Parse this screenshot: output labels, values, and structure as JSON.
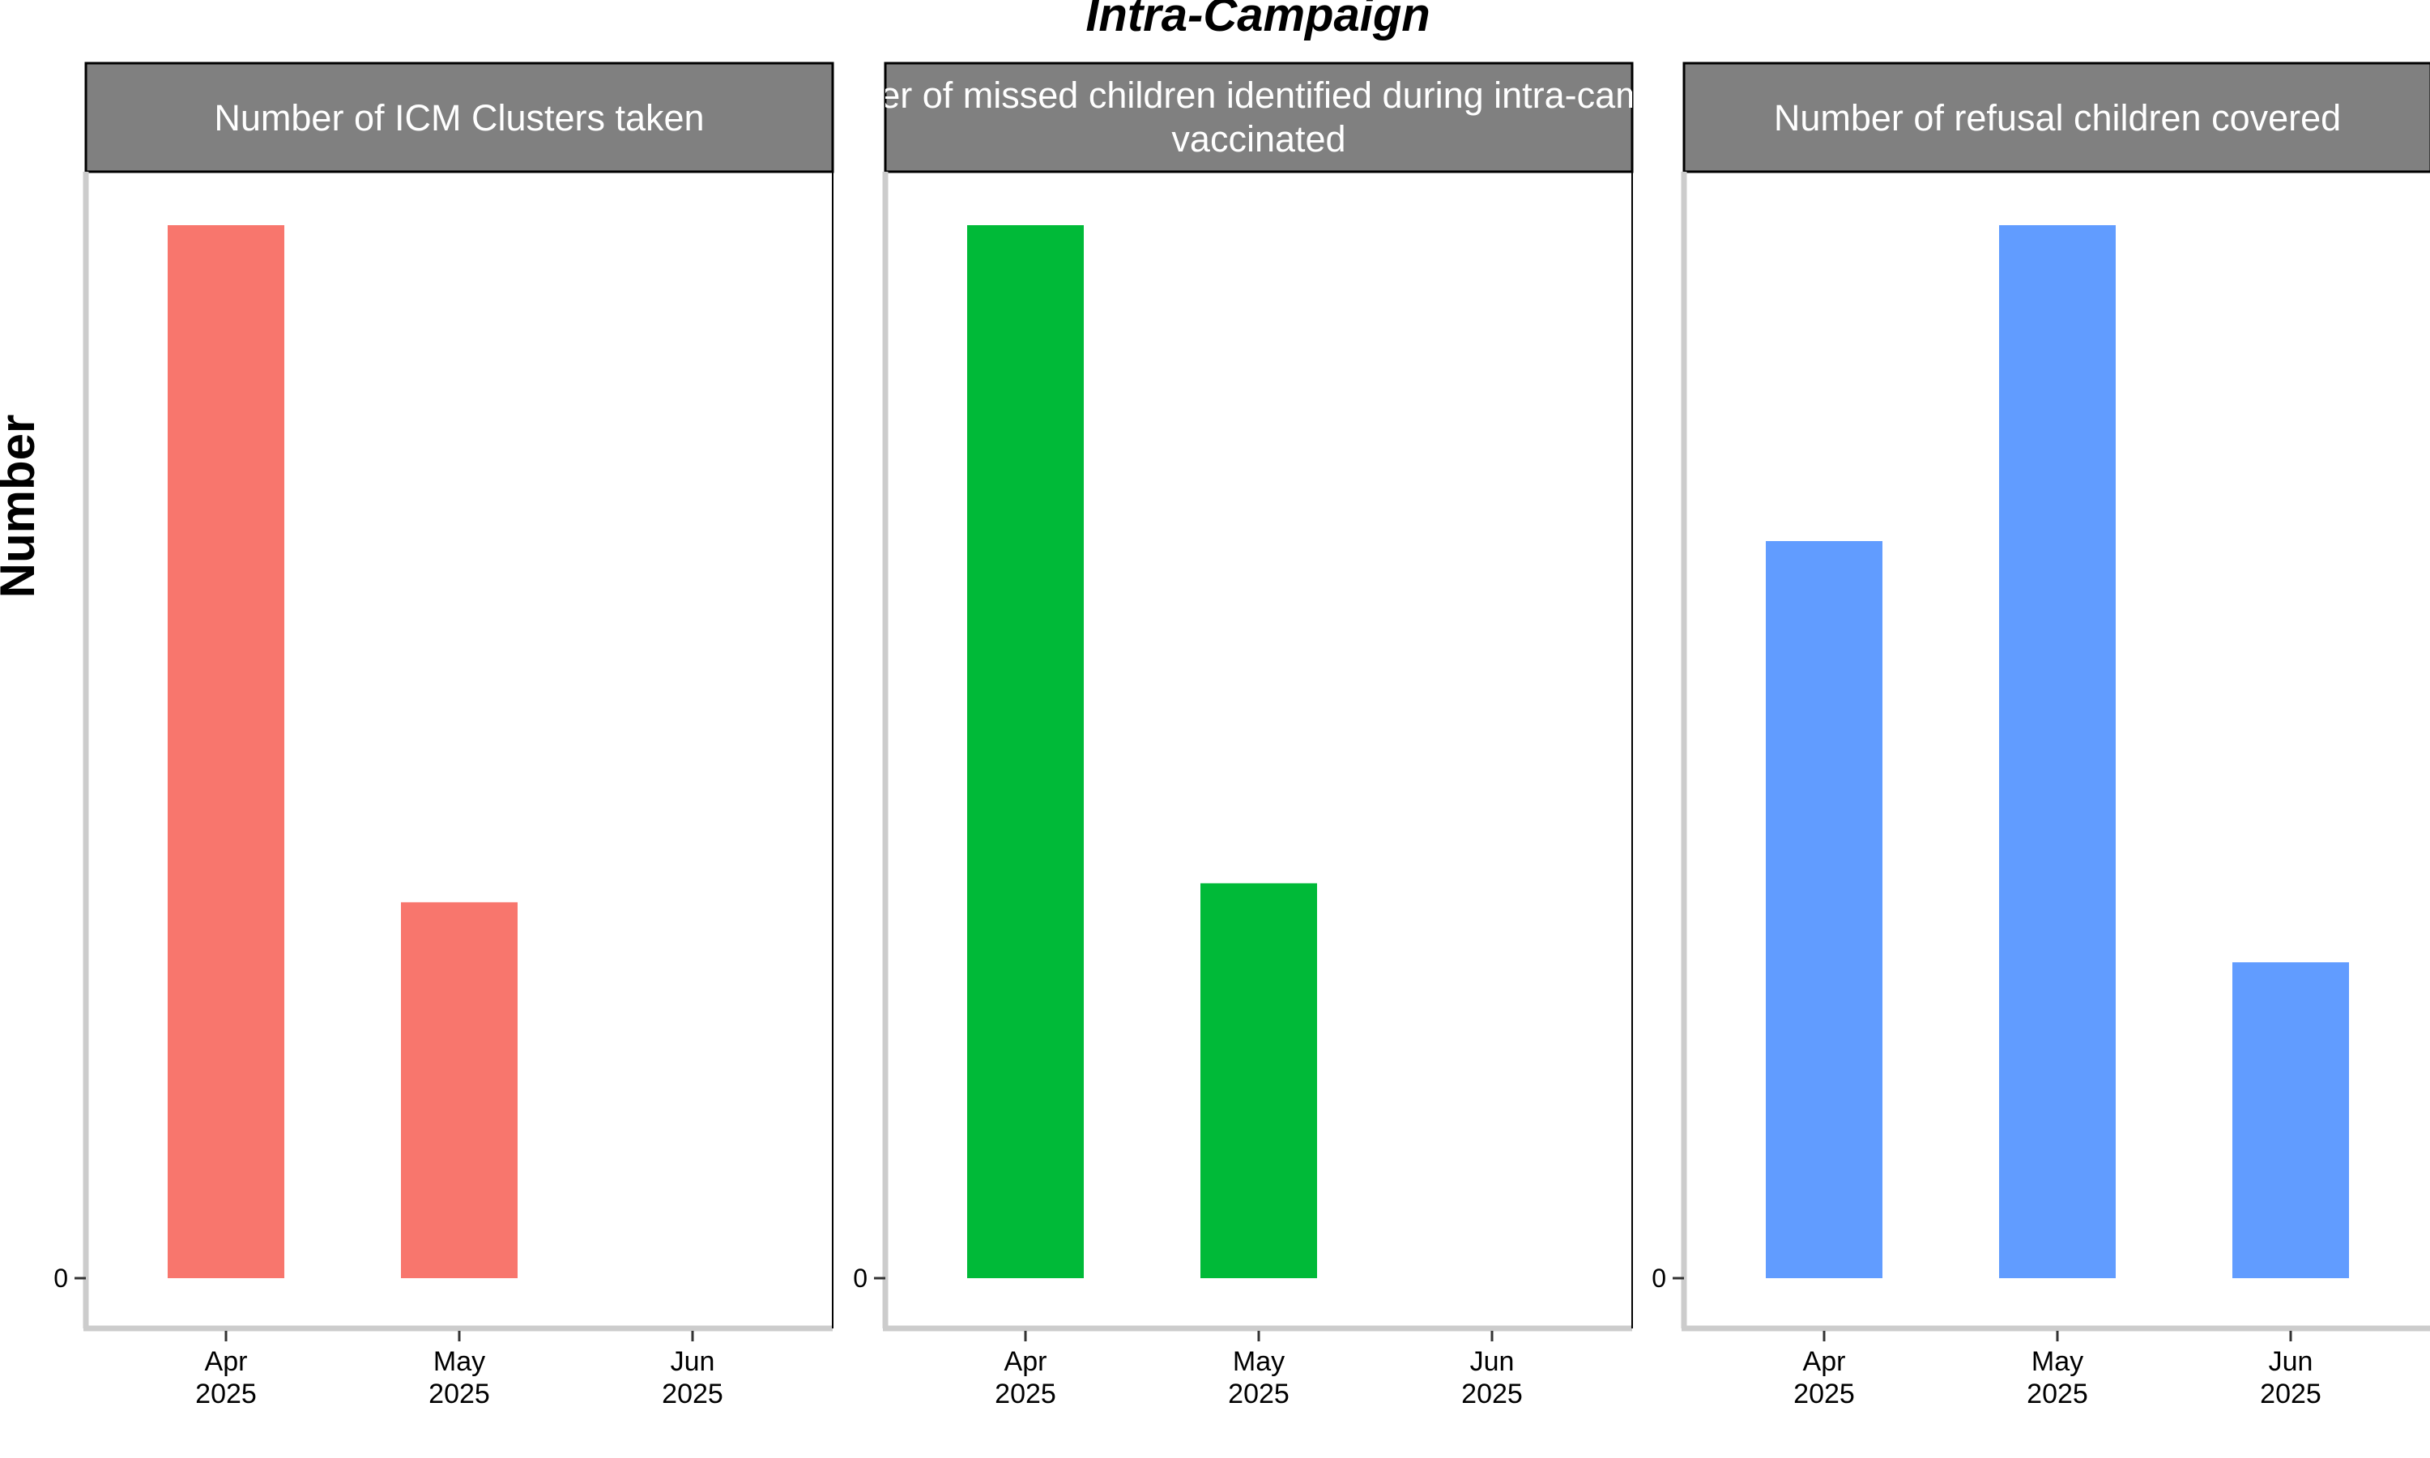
{
  "chart_data": {
    "type": "bar",
    "title": "Intra-Campaign",
    "ylabel": "Number",
    "xlabel": "",
    "y_tick_labels": [
      "0"
    ],
    "y_axis_values_shown": false,
    "grid": false,
    "legend": "none",
    "facet_strip_color": "#808080",
    "categories": [
      {
        "month": "Apr",
        "year": "2025"
      },
      {
        "month": "May",
        "year": "2025"
      },
      {
        "month": "Jun",
        "year": "2025"
      }
    ],
    "panels": [
      {
        "title_lines": [
          "Number of ICM Clusters taken"
        ],
        "color": "#F8766D",
        "values": [
          1.0,
          0.357,
          null
        ]
      },
      {
        "title_lines": [
          "Number of missed children identified during intra-campaign",
          "vaccinated"
        ],
        "color": "#00BA38",
        "values": [
          1.0,
          0.375,
          null
        ]
      },
      {
        "title_lines": [
          "Number of refusal children covered"
        ],
        "color": "#619CFF",
        "values": [
          0.7,
          1.0,
          0.3
        ]
      }
    ]
  }
}
